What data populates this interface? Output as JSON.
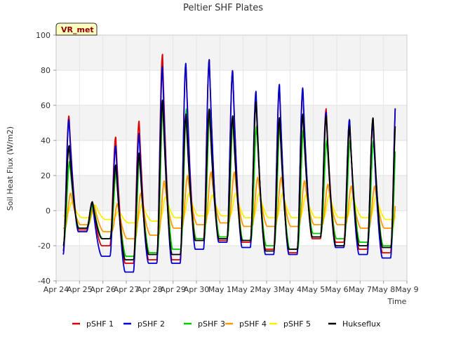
{
  "chart_data": {
    "type": "line",
    "title": "Peltier SHF Plates",
    "xlabel": "Time",
    "ylabel": "Soil Heat Flux (W/m2)",
    "ylim": [
      -40,
      100
    ],
    "yticks": [
      -40,
      -20,
      0,
      20,
      40,
      60,
      80,
      100
    ],
    "xlim": [
      "Apr 24",
      "May 9"
    ],
    "xtick_labels": [
      "Apr 24",
      "Apr 25",
      "Apr 26",
      "Apr 27",
      "Apr 28",
      "Apr 29",
      "Apr 30",
      "May 1",
      "May 2",
      "May 3",
      "May 4",
      "May 5",
      "May 6",
      "May 7",
      "May 8",
      "May 9"
    ],
    "grid": "horizontal bands",
    "legend_placement": "bottom",
    "annotation": "VR_met",
    "days": [
      "Apr 24",
      "Apr 25",
      "Apr 26",
      "Apr 27",
      "Apr 28",
      "Apr 29",
      "Apr 30",
      "May 1",
      "May 2",
      "May 3",
      "May 4",
      "May 5",
      "May 6",
      "May 7",
      "May 8"
    ],
    "start_day_fraction": 0.3,
    "end_day_fraction": 0.5,
    "series": [
      {
        "name": "pSHF 1",
        "color": "#dd0000",
        "daily_max": [
          54,
          5,
          42,
          51,
          89,
          84,
          86,
          80,
          65,
          71,
          69,
          58,
          52,
          52,
          67
        ],
        "daily_min": [
          -23,
          -11,
          -20,
          -30,
          -28,
          -28,
          -17,
          -17,
          -18,
          -22,
          -24,
          -16,
          -18,
          -22,
          -24
        ]
      },
      {
        "name": "pSHF 2",
        "color": "#0000cc",
        "daily_max": [
          52,
          5,
          37,
          44,
          82,
          84,
          86,
          80,
          68,
          72,
          70,
          56,
          52,
          51,
          67
        ],
        "daily_min": [
          -25,
          -12,
          -26,
          -35,
          -30,
          -30,
          -22,
          -18,
          -21,
          -25,
          -25,
          -15,
          -21,
          -25,
          -27
        ]
      },
      {
        "name": "pSHF 3",
        "color": "#00cc00",
        "daily_max": [
          28,
          4,
          23,
          31,
          62,
          58,
          57,
          54,
          48,
          50,
          46,
          40,
          40,
          40,
          50
        ],
        "daily_min": [
          -18,
          -10,
          -16,
          -26,
          -24,
          -22,
          -16,
          -15,
          -17,
          -20,
          -22,
          -13,
          -16,
          -18,
          -20
        ]
      },
      {
        "name": "pSHF 4",
        "color": "#ff9900",
        "daily_max": [
          10,
          3,
          4,
          10,
          17,
          20,
          22,
          22,
          19,
          19,
          17,
          15,
          14,
          14,
          17
        ],
        "daily_min": [
          -10,
          -8,
          -12,
          -16,
          -14,
          -10,
          -8,
          -7,
          -9,
          -9,
          -9,
          -8,
          -8,
          -10,
          -10
        ]
      },
      {
        "name": "pSHF 5",
        "color": "#ffee00",
        "daily_max": [
          5,
          3,
          0,
          4,
          8,
          10,
          9,
          10,
          10,
          10,
          9,
          9,
          8,
          8,
          10
        ],
        "daily_min": [
          -3,
          -4,
          -5,
          -7,
          -6,
          -4,
          -3,
          -3,
          -4,
          -4,
          -4,
          -4,
          -4,
          -4,
          -5
        ]
      },
      {
        "name": "Hukseflux",
        "color": "#000000",
        "daily_max": [
          37,
          5,
          26,
          33,
          63,
          55,
          58,
          54,
          62,
          53,
          55,
          54,
          48,
          53,
          57
        ],
        "daily_min": [
          -20,
          -10,
          -16,
          -28,
          -25,
          -25,
          -17,
          -16,
          -17,
          -23,
          -22,
          -15,
          -20,
          -20,
          -21
        ]
      }
    ]
  }
}
